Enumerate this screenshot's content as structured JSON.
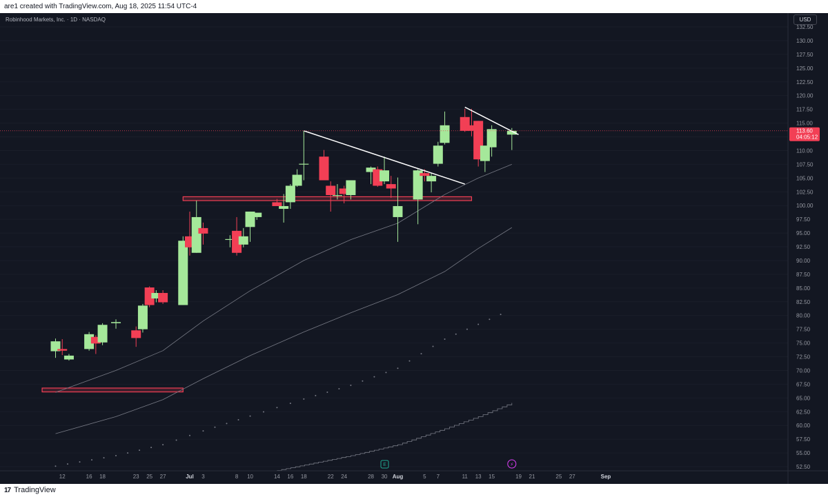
{
  "header": {
    "attribution": "are1 created with TradingView.com, Aug 18, 2025 11:54 UTC-4"
  },
  "symbol": {
    "name": "Robinhood Markets, Inc. · 1D · NASDAQ"
  },
  "currency": "USD",
  "price_tag": {
    "price": "113.60",
    "countdown": "04:05:12"
  },
  "footer": {
    "brand": "TradingView"
  },
  "event_markers": {
    "earnings": "E",
    "dividend": "⚡"
  },
  "colors": {
    "background": "#131722",
    "up": "#a5e89a",
    "down": "#f23f55",
    "zone": "#f23f55",
    "trendline": "#ffffff",
    "ma": "#787b86"
  },
  "chart_data": {
    "type": "candlestick",
    "ylim": [
      51.5,
      133
    ],
    "y_ticks": [
      "52.50",
      "55.00",
      "57.50",
      "60.00",
      "62.50",
      "65.00",
      "67.50",
      "70.00",
      "72.50",
      "75.00",
      "77.50",
      "80.00",
      "82.50",
      "85.00",
      "87.50",
      "90.00",
      "92.50",
      "95.00",
      "97.50",
      "100.00",
      "102.50",
      "105.00",
      "107.50",
      "110.00",
      "112.50",
      "115.00",
      "117.50",
      "120.00",
      "122.50",
      "125.00",
      "127.50",
      "130.00",
      "132.50"
    ],
    "x_ticks": [
      {
        "label": "12",
        "date": "2025-06-12"
      },
      {
        "label": "16",
        "date": "2025-06-16"
      },
      {
        "label": "18",
        "date": "2025-06-18"
      },
      {
        "label": "23",
        "date": "2025-06-23"
      },
      {
        "label": "25",
        "date": "2025-06-25"
      },
      {
        "label": "27",
        "date": "2025-06-27"
      },
      {
        "label": "Jul",
        "date": "2025-07-01",
        "bold": true
      },
      {
        "label": "3",
        "date": "2025-07-03"
      },
      {
        "label": "8",
        "date": "2025-07-08"
      },
      {
        "label": "10",
        "date": "2025-07-10"
      },
      {
        "label": "14",
        "date": "2025-07-14"
      },
      {
        "label": "16",
        "date": "2025-07-16"
      },
      {
        "label": "18",
        "date": "2025-07-18"
      },
      {
        "label": "22",
        "date": "2025-07-22"
      },
      {
        "label": "24",
        "date": "2025-07-24"
      },
      {
        "label": "28",
        "date": "2025-07-28"
      },
      {
        "label": "30",
        "date": "2025-07-30"
      },
      {
        "label": "Aug",
        "date": "2025-08-01",
        "bold": true
      },
      {
        "label": "5",
        "date": "2025-08-05"
      },
      {
        "label": "7",
        "date": "2025-08-07"
      },
      {
        "label": "11",
        "date": "2025-08-11"
      },
      {
        "label": "13",
        "date": "2025-08-13"
      },
      {
        "label": "15",
        "date": "2025-08-15"
      },
      {
        "label": "19",
        "date": "2025-08-19"
      },
      {
        "label": "21",
        "date": "2025-08-21"
      },
      {
        "label": "25",
        "date": "2025-08-25"
      },
      {
        "label": "27",
        "date": "2025-08-27"
      },
      {
        "label": "Sep",
        "date": "2025-09-01",
        "bold": true
      }
    ],
    "candles": [
      {
        "date": "2025-06-11",
        "o": 73.5,
        "h": 75.8,
        "l": 72.3,
        "c": 75.3
      },
      {
        "date": "2025-06-12",
        "o": 73.9,
        "h": 75.7,
        "l": 72.8,
        "c": 73.6
      },
      {
        "date": "2025-06-13",
        "o": 72.0,
        "h": 73.0,
        "l": 71.8,
        "c": 72.7
      },
      {
        "date": "2025-06-16",
        "o": 73.9,
        "h": 77.0,
        "l": 73.6,
        "c": 76.6
      },
      {
        "date": "2025-06-17",
        "o": 76.1,
        "h": 76.4,
        "l": 73.0,
        "c": 74.9
      },
      {
        "date": "2025-06-18",
        "o": 75.1,
        "h": 78.6,
        "l": 74.6,
        "c": 78.3
      },
      {
        "date": "2025-06-20",
        "o": 78.6,
        "h": 79.3,
        "l": 77.6,
        "c": 78.8
      },
      {
        "date": "2025-06-23",
        "o": 77.3,
        "h": 78.0,
        "l": 74.3,
        "c": 75.9
      },
      {
        "date": "2025-06-24",
        "o": 77.5,
        "h": 82.1,
        "l": 76.9,
        "c": 81.8
      },
      {
        "date": "2025-06-25",
        "o": 85.1,
        "h": 85.3,
        "l": 81.5,
        "c": 81.9
      },
      {
        "date": "2025-06-26",
        "o": 83.1,
        "h": 84.6,
        "l": 82.4,
        "c": 84.1
      },
      {
        "date": "2025-06-27",
        "o": 84.1,
        "h": 84.6,
        "l": 82.1,
        "c": 82.4
      },
      {
        "date": "2025-06-30",
        "o": 81.9,
        "h": 94.4,
        "l": 81.9,
        "c": 93.6
      },
      {
        "date": "2025-07-01",
        "o": 94.4,
        "h": 98.9,
        "l": 90.9,
        "c": 92.4
      },
      {
        "date": "2025-07-02",
        "o": 91.4,
        "h": 100.9,
        "l": 91.4,
        "c": 97.9
      },
      {
        "date": "2025-07-03",
        "o": 95.9,
        "h": 96.9,
        "l": 92.9,
        "c": 94.9
      },
      {
        "date": "2025-07-07",
        "o": 93.9,
        "h": 94.6,
        "l": 92.4,
        "c": 93.9
      },
      {
        "date": "2025-07-08",
        "o": 95.4,
        "h": 97.9,
        "l": 90.9,
        "c": 91.4
      },
      {
        "date": "2025-07-09",
        "o": 92.9,
        "h": 95.9,
        "l": 92.4,
        "c": 94.4
      },
      {
        "date": "2025-07-10",
        "o": 96.1,
        "h": 98.9,
        "l": 93.4,
        "c": 98.9
      },
      {
        "date": "2025-07-11",
        "o": 97.9,
        "h": 98.1,
        "l": 97.4,
        "c": 98.7
      },
      {
        "date": "2025-07-14",
        "o": 100.6,
        "h": 101.2,
        "l": 99.9,
        "c": 99.9
      },
      {
        "date": "2025-07-15",
        "o": 99.4,
        "h": 102.1,
        "l": 96.9,
        "c": 99.9
      },
      {
        "date": "2025-07-16",
        "o": 100.6,
        "h": 103.9,
        "l": 99.4,
        "c": 103.6
      },
      {
        "date": "2025-07-17",
        "o": 103.6,
        "h": 106.6,
        "l": 103.4,
        "c": 105.6
      },
      {
        "date": "2025-07-18",
        "o": 107.6,
        "h": 113.6,
        "l": 104.6,
        "c": 107.6
      },
      {
        "date": "2025-07-21",
        "o": 108.9,
        "h": 110.1,
        "l": 104.6,
        "c": 104.6
      },
      {
        "date": "2025-07-22",
        "o": 103.6,
        "h": 104.4,
        "l": 98.9,
        "c": 101.9
      },
      {
        "date": "2025-07-23",
        "o": 101.9,
        "h": 103.9,
        "l": 101.1,
        "c": 101.9
      },
      {
        "date": "2025-07-24",
        "o": 103.1,
        "h": 103.6,
        "l": 100.4,
        "c": 102.1
      },
      {
        "date": "2025-07-25",
        "o": 101.9,
        "h": 104.6,
        "l": 101.1,
        "c": 104.6
      },
      {
        "date": "2025-07-28",
        "o": 106.1,
        "h": 107.1,
        "l": 103.9,
        "c": 106.9
      },
      {
        "date": "2025-07-29",
        "o": 106.6,
        "h": 107.1,
        "l": 103.4,
        "c": 103.6
      },
      {
        "date": "2025-07-30",
        "o": 104.4,
        "h": 108.9,
        "l": 103.9,
        "c": 106.4
      },
      {
        "date": "2025-07-31",
        "o": 103.9,
        "h": 105.4,
        "l": 101.4,
        "c": 103.1
      },
      {
        "date": "2025-08-01",
        "o": 97.9,
        "h": 105.1,
        "l": 93.4,
        "c": 99.9
      },
      {
        "date": "2025-08-04",
        "o": 101.1,
        "h": 106.6,
        "l": 96.6,
        "c": 106.4
      },
      {
        "date": "2025-08-05",
        "o": 105.9,
        "h": 106.6,
        "l": 104.4,
        "c": 105.4
      },
      {
        "date": "2025-08-06",
        "o": 104.4,
        "h": 105.9,
        "l": 102.4,
        "c": 105.4
      },
      {
        "date": "2025-08-07",
        "o": 107.6,
        "h": 111.6,
        "l": 107.1,
        "c": 110.9
      },
      {
        "date": "2025-08-08",
        "o": 111.4,
        "h": 117.1,
        "l": 111.1,
        "c": 114.6
      },
      {
        "date": "2025-08-11",
        "o": 116.1,
        "h": 117.6,
        "l": 113.4,
        "c": 113.6
      },
      {
        "date": "2025-08-12",
        "o": 114.6,
        "h": 117.6,
        "l": 112.6,
        "c": 113.6
      },
      {
        "date": "2025-08-13",
        "o": 115.4,
        "h": 115.4,
        "l": 107.1,
        "c": 108.4
      },
      {
        "date": "2025-08-14",
        "o": 108.1,
        "h": 110.9,
        "l": 106.1,
        "c": 110.9
      },
      {
        "date": "2025-08-15",
        "o": 110.6,
        "h": 114.6,
        "l": 108.9,
        "c": 113.9
      },
      {
        "date": "2025-08-18",
        "o": 112.9,
        "h": 114.1,
        "l": 110.1,
        "c": 113.6
      }
    ],
    "current_price": 113.6,
    "moving_averages": [
      {
        "points": [
          [
            "2025-06-11",
            66.0
          ],
          [
            "2025-06-20",
            70.0
          ],
          [
            "2025-06-27",
            73.6
          ],
          [
            "2025-07-03",
            79.0
          ],
          [
            "2025-07-10",
            84.5
          ],
          [
            "2025-07-18",
            90.0
          ],
          [
            "2025-07-25",
            93.8
          ],
          [
            "2025-08-01",
            96.8
          ],
          [
            "2025-08-08",
            102.0
          ],
          [
            "2025-08-13",
            105.0
          ],
          [
            "2025-08-18",
            107.5
          ]
        ]
      },
      {
        "points": [
          [
            "2025-06-11",
            58.5
          ],
          [
            "2025-06-20",
            61.6
          ],
          [
            "2025-06-27",
            64.7
          ],
          [
            "2025-07-03",
            68.5
          ],
          [
            "2025-07-10",
            72.7
          ],
          [
            "2025-07-18",
            77.0
          ],
          [
            "2025-07-25",
            80.5
          ],
          [
            "2025-08-01",
            83.8
          ],
          [
            "2025-08-08",
            88.0
          ],
          [
            "2025-08-13",
            92.2
          ],
          [
            "2025-08-18",
            96.0
          ]
        ]
      },
      {
        "style": "dotted",
        "points": [
          [
            "2025-06-11",
            52.6
          ],
          [
            "2025-06-20",
            54.5
          ],
          [
            "2025-06-27",
            56.5
          ],
          [
            "2025-07-03",
            59.0
          ],
          [
            "2025-07-10",
            61.7
          ],
          [
            "2025-07-18",
            64.8
          ],
          [
            "2025-07-25",
            67.3
          ],
          [
            "2025-08-01",
            70.4
          ],
          [
            "2025-08-08",
            75.7
          ],
          [
            "2025-08-13",
            78.4
          ],
          [
            "2025-08-18",
            81.1
          ]
        ]
      },
      {
        "style": "step",
        "points": [
          [
            "2025-07-14",
            51.8
          ],
          [
            "2025-07-25",
            54.5
          ],
          [
            "2025-08-01",
            56.5
          ],
          [
            "2025-08-08",
            59.4
          ],
          [
            "2025-08-13",
            61.6
          ],
          [
            "2025-08-18",
            64.1
          ]
        ]
      }
    ],
    "trendlines": [
      {
        "from": [
          "2025-07-18",
          113.6
        ],
        "to": [
          "2025-08-11",
          103.9
        ]
      },
      {
        "from": [
          "2025-08-11",
          117.9
        ],
        "to": [
          "2025-08-19",
          112.9
        ]
      }
    ],
    "zones": [
      {
        "x_from": "2025-06-30",
        "x_to": "2025-08-12",
        "y_from": 100.9,
        "y_to": 101.6
      },
      {
        "x_from": "2025-06-09",
        "x_to": "2025-06-30",
        "y_from": 66.1,
        "y_to": 66.8
      }
    ]
  }
}
